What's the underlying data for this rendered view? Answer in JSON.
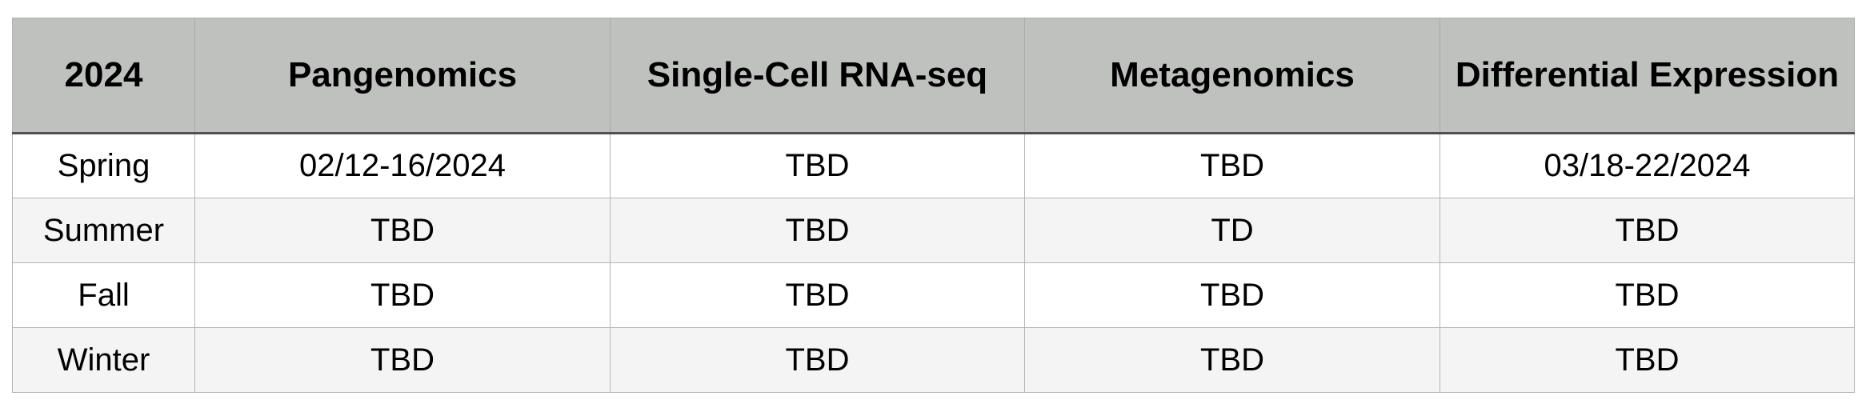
{
  "table": {
    "headers": [
      "2024",
      "Pangenomics",
      "Single-Cell RNA-seq",
      "Metagenomics",
      "Differential Expression"
    ],
    "rows": [
      [
        "Spring",
        "02/12-16/2024",
        "TBD",
        "TBD",
        "03/18-22/2024"
      ],
      [
        "Summer",
        "TBD",
        "TBD",
        "TD",
        "TBD"
      ],
      [
        "Fall",
        "TBD",
        "TBD",
        "TBD",
        "TBD"
      ],
      [
        "Winter",
        "TBD",
        "TBD",
        "TBD",
        "TBD"
      ]
    ]
  },
  "colors": {
    "header_background": "#bfc1bf",
    "alternate_row_background": "#f4f4f4",
    "header_rule": "#505050",
    "grid_lines": "#b4b4b4"
  }
}
